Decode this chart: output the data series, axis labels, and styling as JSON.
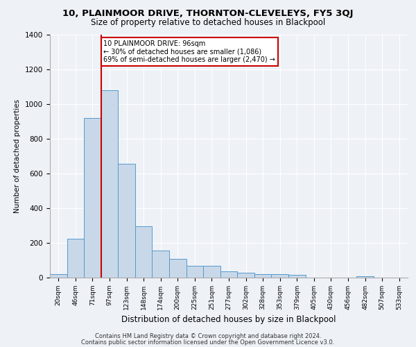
{
  "title1": "10, PLAINMOOR DRIVE, THORNTON-CLEVELEYS, FY5 3QJ",
  "title2": "Size of property relative to detached houses in Blackpool",
  "xlabel": "Distribution of detached houses by size in Blackpool",
  "ylabel": "Number of detached properties",
  "footnote1": "Contains HM Land Registry data © Crown copyright and database right 2024.",
  "footnote2": "Contains public sector information licensed under the Open Government Licence v3.0.",
  "bar_labels": [
    "20sqm",
    "46sqm",
    "71sqm",
    "97sqm",
    "123sqm",
    "148sqm",
    "174sqm",
    "200sqm",
    "225sqm",
    "251sqm",
    "277sqm",
    "302sqm",
    "328sqm",
    "353sqm",
    "379sqm",
    "405sqm",
    "430sqm",
    "456sqm",
    "482sqm",
    "507sqm",
    "533sqm"
  ],
  "bar_values": [
    20,
    225,
    920,
    1080,
    655,
    295,
    157,
    108,
    70,
    70,
    38,
    28,
    22,
    22,
    18,
    0,
    0,
    0,
    10,
    0,
    0
  ],
  "bar_color": "#c8d8e8",
  "bar_edge_color": "#5599cc",
  "highlight_bar_index": 3,
  "vline_color": "#cc0000",
  "annotation_title": "10 PLAINMOOR DRIVE: 96sqm",
  "annotation_line1": "← 30% of detached houses are smaller (1,086)",
  "annotation_line2": "69% of semi-detached houses are larger (2,470) →",
  "annotation_box_color": "#cc0000",
  "ylim": [
    0,
    1400
  ],
  "yticks": [
    0,
    200,
    400,
    600,
    800,
    1000,
    1200,
    1400
  ],
  "background_color": "#eef2f7",
  "plot_bg_color": "#eef2f7",
  "grid_color": "#ffffff"
}
